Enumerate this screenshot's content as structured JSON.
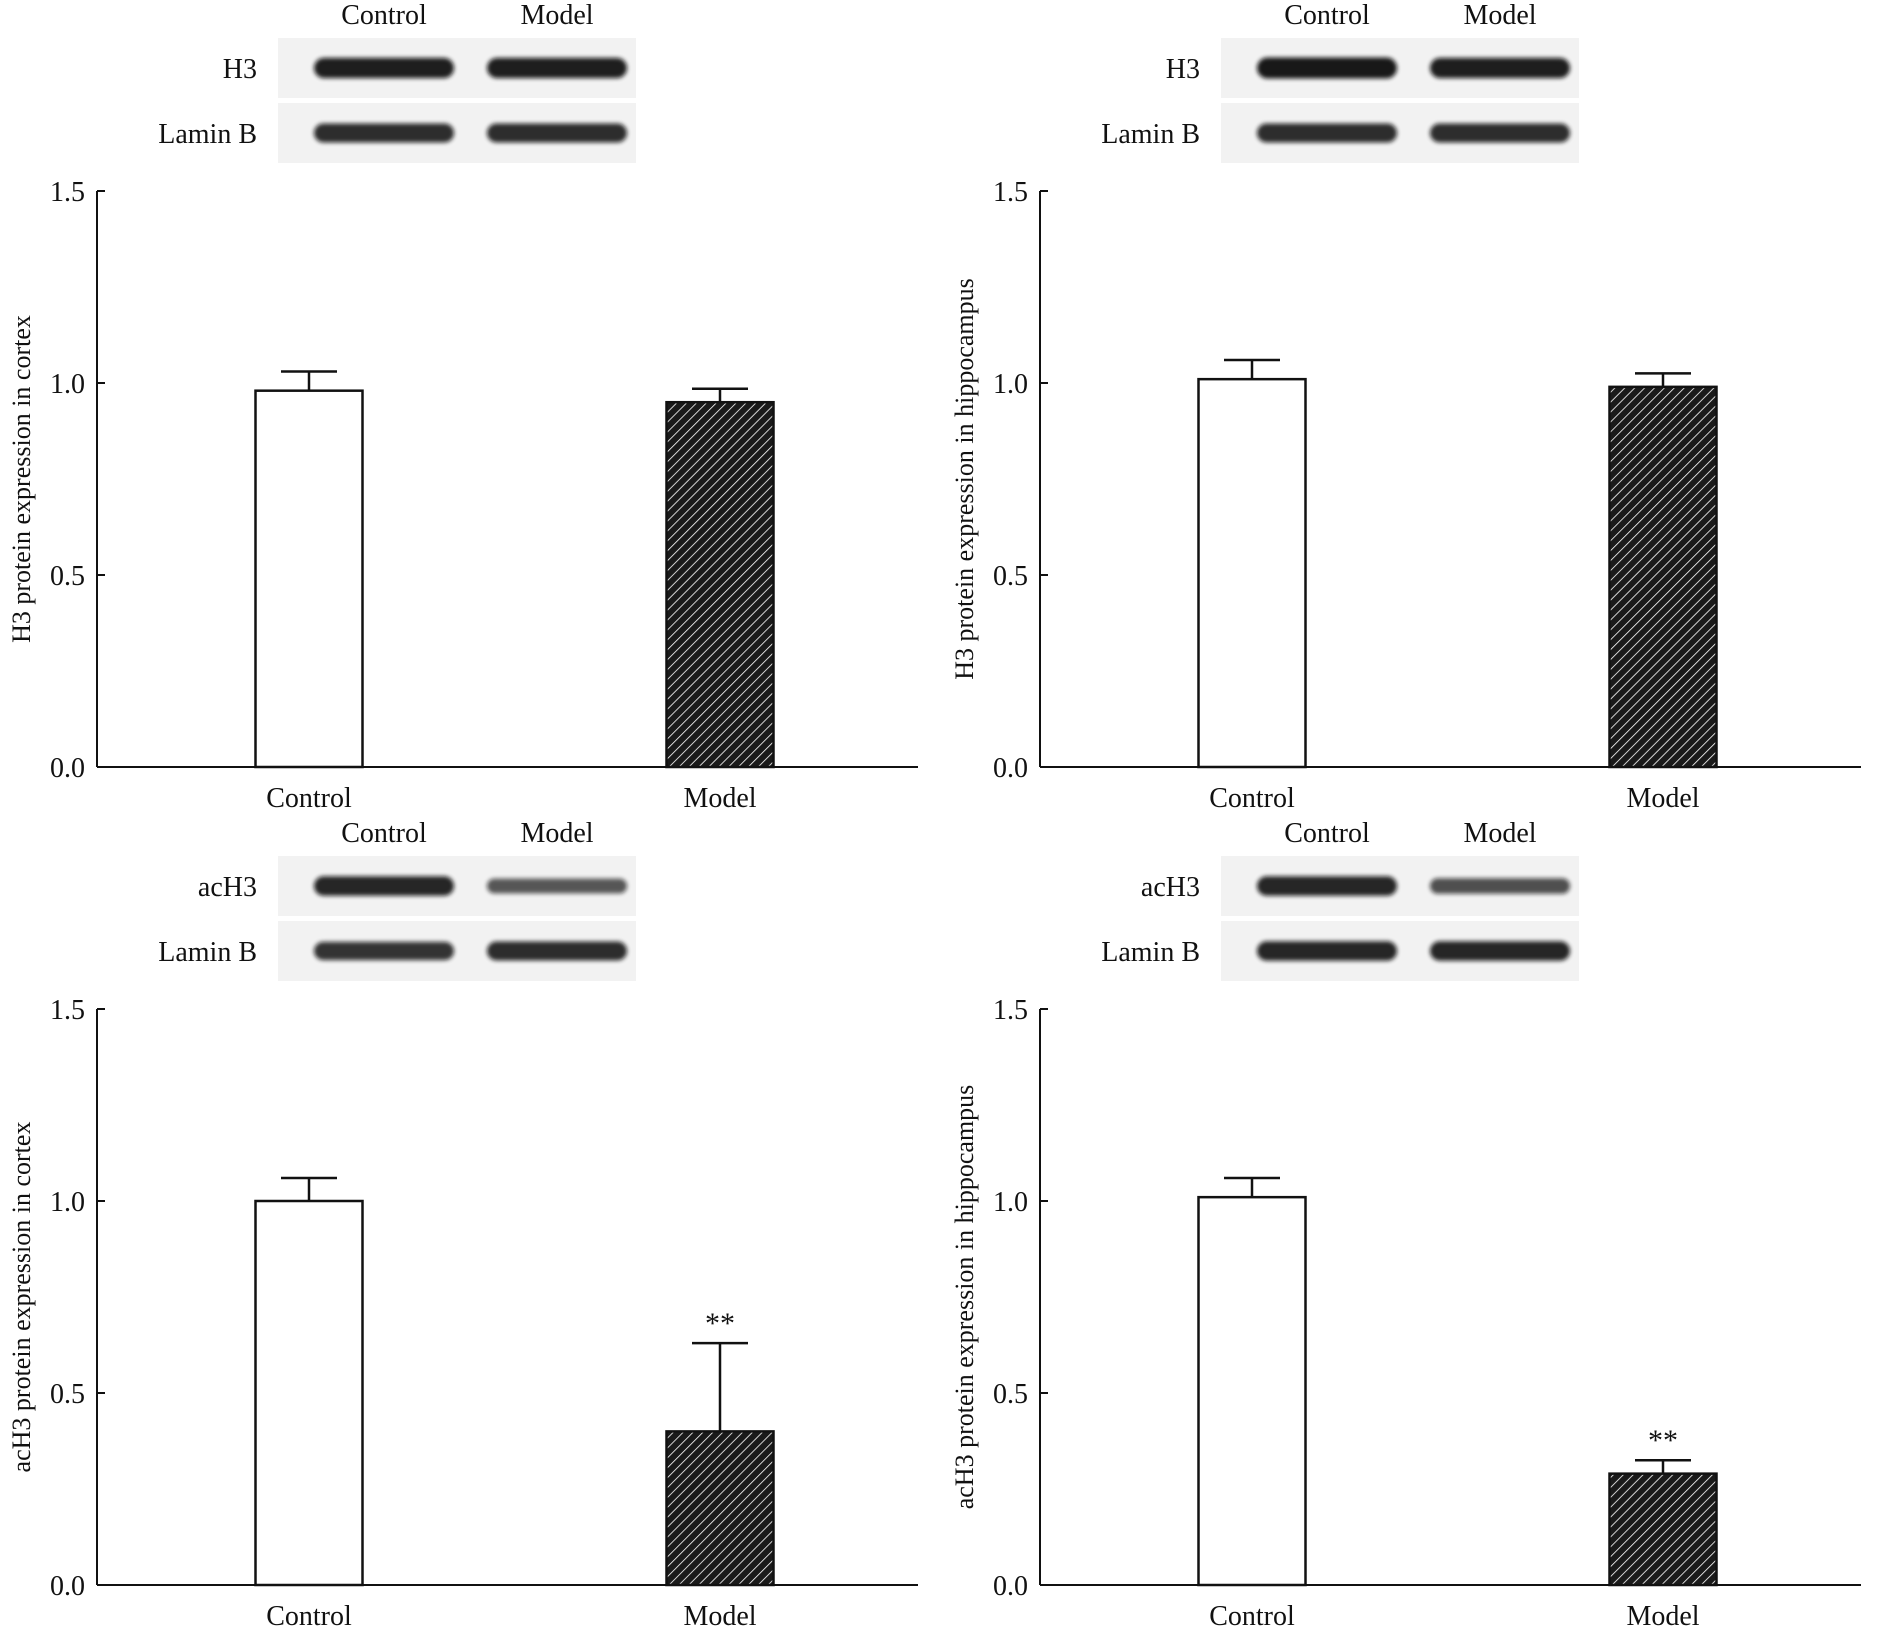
{
  "panels": [
    {
      "blot": {
        "lanes": [
          "Control",
          "Model"
        ],
        "rows": [
          {
            "label": "H3",
            "intensity": [
              0.95,
              0.95
            ]
          },
          {
            "label": "Lamin B",
            "intensity": [
              0.85,
              0.85
            ]
          }
        ]
      },
      "chart_data": {
        "type": "bar",
        "categories": [
          "Control",
          "Model"
        ],
        "values": [
          0.98,
          0.95
        ],
        "errors": [
          0.05,
          0.035
        ],
        "significance": [
          "",
          ""
        ],
        "title": "",
        "xlabel": "",
        "ylabel": "H3 protein expression in cortex",
        "ylim": [
          0,
          1.5
        ],
        "yticks": [
          "0.0",
          "0.5",
          "1.0",
          "1.5"
        ],
        "bar_styles": [
          "open",
          "hatched"
        ],
        "grid": false
      }
    },
    {
      "blot": {
        "lanes": [
          "Control",
          "Model"
        ],
        "rows": [
          {
            "label": "H3",
            "intensity": [
              1.0,
              0.95
            ]
          },
          {
            "label": "Lamin B",
            "intensity": [
              0.85,
              0.85
            ]
          }
        ]
      },
      "chart_data": {
        "type": "bar",
        "categories": [
          "Control",
          "Model"
        ],
        "values": [
          1.01,
          0.99
        ],
        "errors": [
          0.05,
          0.035
        ],
        "significance": [
          "",
          ""
        ],
        "title": "",
        "xlabel": "",
        "ylabel": "H3 protein expression in hippocampus",
        "ylim": [
          0,
          1.5
        ],
        "yticks": [
          "0.0",
          "0.5",
          "1.0",
          "1.5"
        ],
        "bar_styles": [
          "open",
          "hatched"
        ],
        "grid": false
      }
    },
    {
      "blot": {
        "lanes": [
          "Control",
          "Model"
        ],
        "rows": [
          {
            "label": "acH3",
            "intensity": [
              0.9,
              0.55
            ]
          },
          {
            "label": "Lamin B",
            "intensity": [
              0.8,
              0.85
            ]
          }
        ]
      },
      "chart_data": {
        "type": "bar",
        "categories": [
          "Control",
          "Model"
        ],
        "values": [
          1.0,
          0.4
        ],
        "errors": [
          0.06,
          0.23
        ],
        "significance": [
          "",
          "**"
        ],
        "title": "",
        "xlabel": "",
        "ylabel": "acH3 protein expression in cortex",
        "ylim": [
          0,
          1.5
        ],
        "yticks": [
          "0.0",
          "0.5",
          "1.0",
          "1.5"
        ],
        "bar_styles": [
          "open",
          "hatched"
        ],
        "grid": false
      }
    },
    {
      "blot": {
        "lanes": [
          "Control",
          "Model"
        ],
        "rows": [
          {
            "label": "acH3",
            "intensity": [
              0.9,
              0.6
            ]
          },
          {
            "label": "Lamin B",
            "intensity": [
              0.9,
              0.9
            ]
          }
        ]
      },
      "chart_data": {
        "type": "bar",
        "categories": [
          "Control",
          "Model"
        ],
        "values": [
          1.01,
          0.29
        ],
        "errors": [
          0.05,
          0.035
        ],
        "significance": [
          "",
          "**"
        ],
        "title": "",
        "xlabel": "",
        "ylabel": "acH3 protein expression in hippocampus",
        "ylim": [
          0,
          1.5
        ],
        "yticks": [
          "0.0",
          "0.5",
          "1.0",
          "1.5"
        ],
        "bar_styles": [
          "open",
          "hatched"
        ],
        "grid": false
      }
    }
  ]
}
